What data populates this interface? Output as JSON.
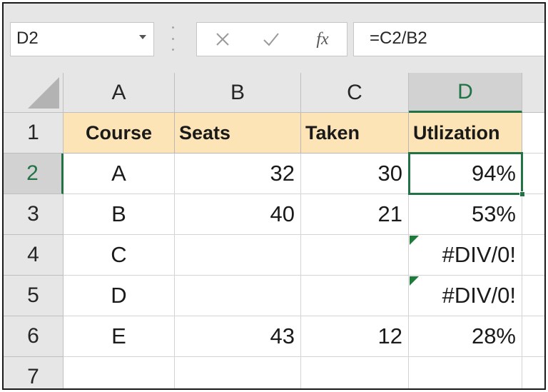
{
  "formula_bar": {
    "name_box": "D2",
    "cancel_icon": "close-icon",
    "enter_icon": "check-icon",
    "fx_label": "fx",
    "formula": "=C2/B2"
  },
  "columns": [
    "A",
    "B",
    "C",
    "D"
  ],
  "rows": [
    "1",
    "2",
    "3",
    "4",
    "5",
    "6",
    "7"
  ],
  "selected": {
    "column": "D",
    "row": "2"
  },
  "colors": {
    "accent": "#217346",
    "header_fill": "#fce4b6",
    "error_indicator": "#1e7b3a"
  },
  "cells": {
    "A1": "Course",
    "B1": "Seats",
    "C1": "Taken",
    "D1": "Utlization",
    "A2": "A",
    "B2": "32",
    "C2": "30",
    "D2": "94%",
    "A3": "B",
    "B3": "40",
    "C3": "21",
    "D3": "53%",
    "A4": "C",
    "B4": "",
    "C4": "",
    "D4": "#DIV/0!",
    "A5": "D",
    "B5": "",
    "C5": "",
    "D5": "#DIV/0!",
    "A6": "E",
    "B6": "43",
    "C6": "12",
    "D6": "28%",
    "A7": "",
    "B7": "",
    "C7": "",
    "D7": ""
  }
}
